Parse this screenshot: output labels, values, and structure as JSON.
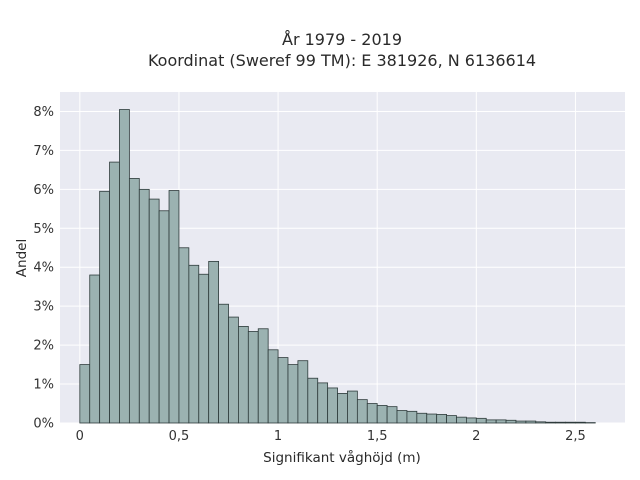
{
  "chart_data": {
    "type": "bar",
    "title": [
      "År 1979 - 2019",
      "Koordinat (Sweref 99 TM): E 381926, N 6136614"
    ],
    "xlabel": "Signifikant våghöjd (m)",
    "ylabel": "Andel",
    "bin_width": 0.05,
    "x_bins_start": [
      0.0,
      0.05,
      0.1,
      0.15,
      0.2,
      0.25,
      0.3,
      0.35,
      0.4,
      0.45,
      0.5,
      0.55,
      0.6,
      0.65,
      0.7,
      0.75,
      0.8,
      0.85,
      0.9,
      0.95,
      1.0,
      1.05,
      1.1,
      1.15,
      1.2,
      1.25,
      1.3,
      1.35,
      1.4,
      1.45,
      1.5,
      1.55,
      1.6,
      1.65,
      1.7,
      1.75,
      1.8,
      1.85,
      1.9,
      1.95,
      2.0,
      2.05,
      2.1,
      2.15,
      2.2,
      2.25,
      2.3,
      2.35,
      2.4,
      2.45,
      2.5,
      2.55
    ],
    "values": [
      1.5,
      3.8,
      5.95,
      6.7,
      8.05,
      6.28,
      6.0,
      5.75,
      5.45,
      5.97,
      4.5,
      4.05,
      3.82,
      4.15,
      3.05,
      2.72,
      2.48,
      2.35,
      2.42,
      1.88,
      1.68,
      1.5,
      1.6,
      1.15,
      1.03,
      0.9,
      0.76,
      0.82,
      0.6,
      0.5,
      0.45,
      0.42,
      0.32,
      0.3,
      0.25,
      0.23,
      0.22,
      0.19,
      0.15,
      0.13,
      0.12,
      0.08,
      0.08,
      0.07,
      0.05,
      0.05,
      0.03,
      0.02,
      0.02,
      0.02,
      0.02,
      0.01
    ],
    "xlim": [
      -0.1,
      2.75
    ],
    "ylim": [
      0,
      8.5
    ],
    "xticks": [
      0,
      0.5,
      1,
      1.5,
      2,
      2.5
    ],
    "xtick_labels": [
      "0",
      "0,5",
      "1",
      "1,5",
      "2",
      "2,5"
    ],
    "yticks": [
      0,
      1,
      2,
      3,
      4,
      5,
      6,
      7,
      8
    ],
    "ytick_labels": [
      "0%",
      "1%",
      "2%",
      "3%",
      "4%",
      "5%",
      "6%",
      "7%",
      "8%"
    ],
    "grid": true,
    "colors": {
      "plot_bg": "#e9eaf2",
      "grid": "#ffffff",
      "bar_fill": "#9bb2b1",
      "bar_stroke": "#2e3b3b"
    }
  }
}
